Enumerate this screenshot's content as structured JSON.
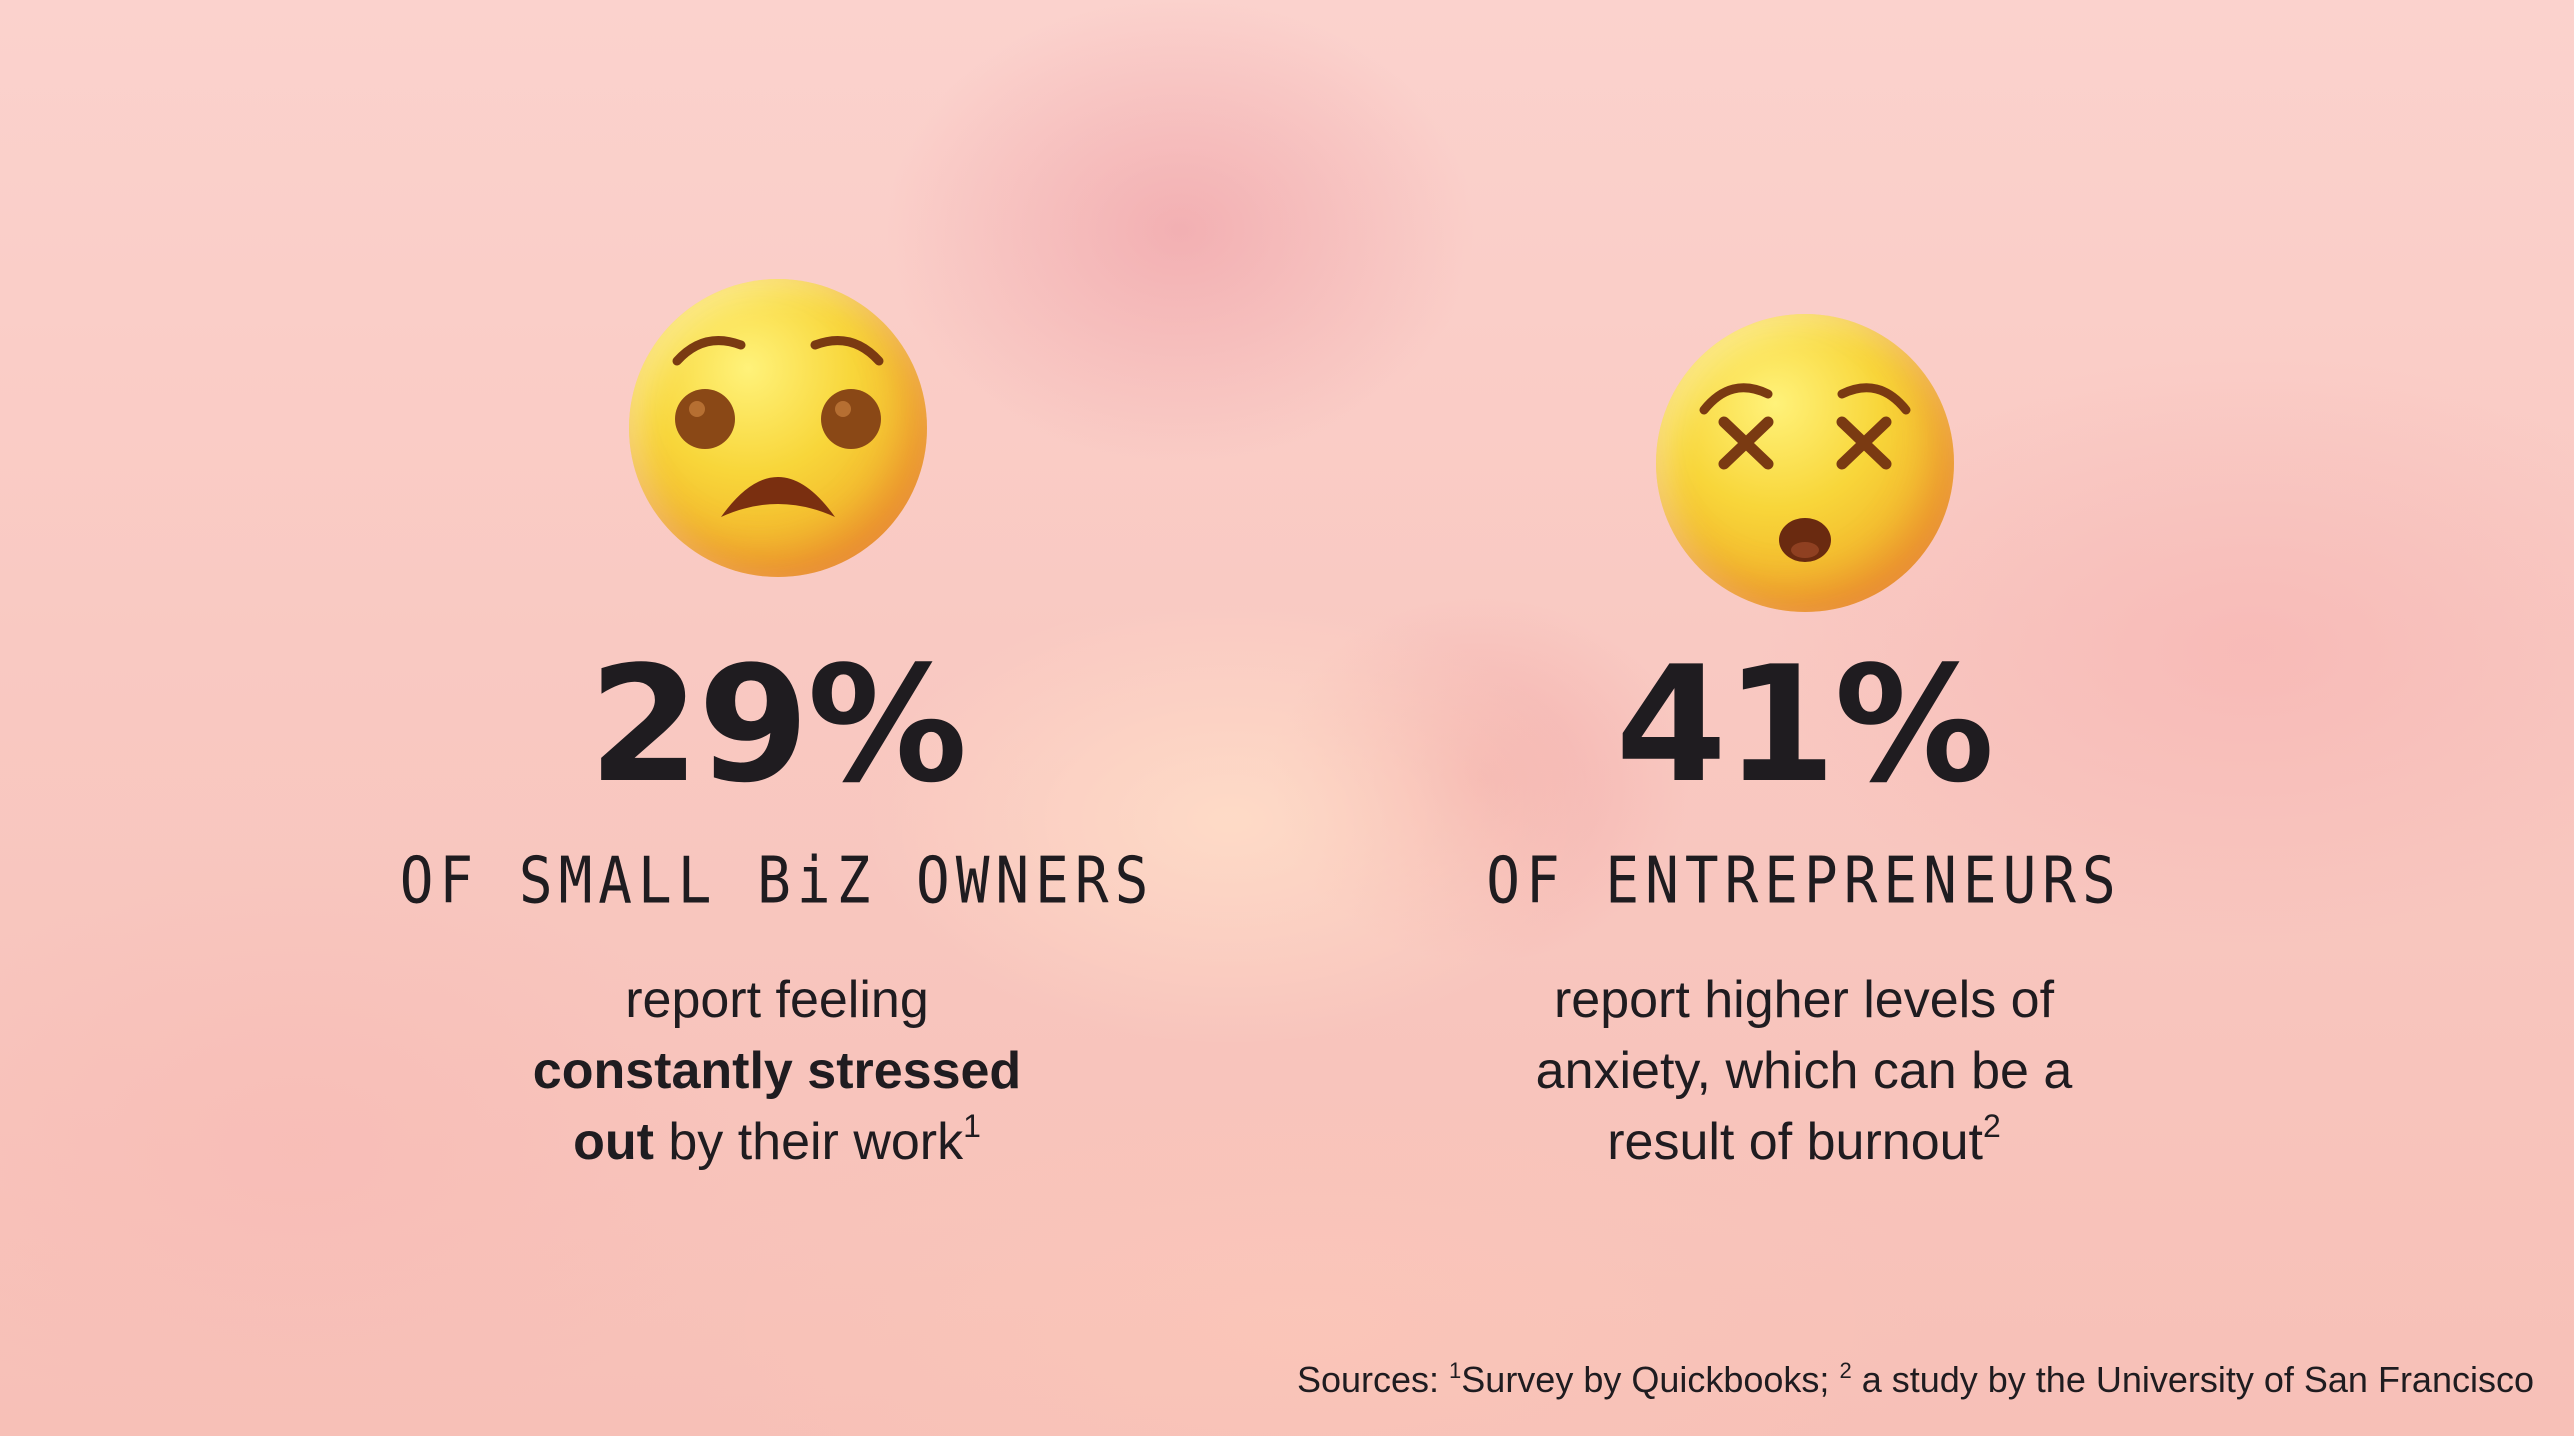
{
  "background": {
    "base_color": "#f9c9c2",
    "accent_color": "#f0a0a5"
  },
  "left_stat": {
    "icon": "anguished-face-emoji",
    "value": "29%",
    "label": "OF SMALL BiZ OWNERS",
    "desc_line1": "report feeling",
    "desc_bold1": "constantly stressed",
    "desc_bold2": "out",
    "desc_rest": " by their work",
    "footnote": "1"
  },
  "right_stat": {
    "icon": "dizzy-face-emoji",
    "value": "41%",
    "label": "OF ENTREPRENEURS",
    "desc_line1": "report higher levels of",
    "desc_line2": "anxiety, which can be a",
    "desc_line3": "result of burnout",
    "footnote": "2"
  },
  "sources": {
    "prefix": "Sources: ",
    "mark1": "1",
    "source1": "Survey by Quickbooks; ",
    "mark2": "2",
    "source2": " a study by the University of San Francisco"
  },
  "text_color": "#1f1c20"
}
